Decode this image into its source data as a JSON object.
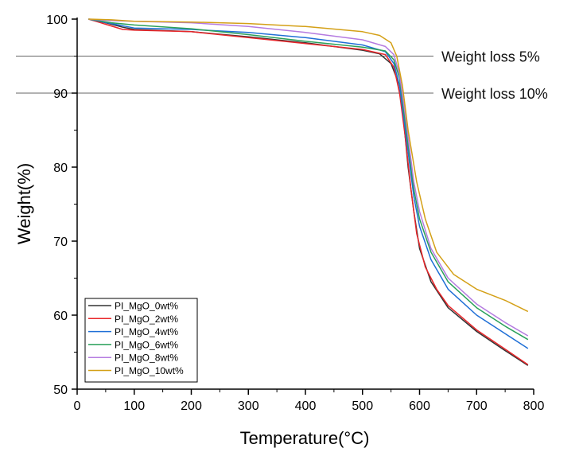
{
  "chart_data": {
    "type": "line",
    "title": "",
    "xlabel": "Temperature(°C)",
    "ylabel": "Weight(%)",
    "xlim": [
      0,
      800
    ],
    "ylim": [
      50,
      100
    ],
    "xticks": [
      "0",
      "100",
      "200",
      "300",
      "400",
      "500",
      "600",
      "700",
      "800"
    ],
    "yticks": [
      "50",
      "60",
      "70",
      "80",
      "90",
      "100"
    ],
    "grid": false,
    "legend_position": "bottom-left",
    "reference_lines": [
      {
        "y": 95,
        "label": "Weight loss 5%"
      },
      {
        "y": 90,
        "label": "Weight loss 10%"
      }
    ],
    "series": [
      {
        "name": "PI_MgO_0wt%",
        "color": "#333333",
        "points": [
          [
            20,
            100
          ],
          [
            50,
            99.5
          ],
          [
            80,
            98.9
          ],
          [
            100,
            98.6
          ],
          [
            200,
            98.3
          ],
          [
            300,
            97.6
          ],
          [
            400,
            96.8
          ],
          [
            500,
            95.8
          ],
          [
            530,
            95.3
          ],
          [
            550,
            94
          ],
          [
            560,
            92
          ],
          [
            570,
            88
          ],
          [
            580,
            80
          ],
          [
            590,
            74
          ],
          [
            600,
            69
          ],
          [
            620,
            64.5
          ],
          [
            650,
            61
          ],
          [
            700,
            57.8
          ],
          [
            750,
            55.2
          ],
          [
            790,
            53.2
          ]
        ]
      },
      {
        "name": "PI_MgO_2wt%",
        "color": "#e8262a",
        "points": [
          [
            20,
            100
          ],
          [
            50,
            99.3
          ],
          [
            80,
            98.6
          ],
          [
            100,
            98.5
          ],
          [
            200,
            98.3
          ],
          [
            300,
            97.5
          ],
          [
            400,
            96.7
          ],
          [
            500,
            95.9
          ],
          [
            540,
            95.2
          ],
          [
            555,
            93.5
          ],
          [
            565,
            90
          ],
          [
            575,
            84
          ],
          [
            585,
            77
          ],
          [
            595,
            71
          ],
          [
            610,
            66.5
          ],
          [
            630,
            63.5
          ],
          [
            650,
            61.3
          ],
          [
            700,
            58
          ],
          [
            750,
            55.4
          ],
          [
            790,
            53.3
          ]
        ]
      },
      {
        "name": "PI_MgO_4wt%",
        "color": "#1f6fd6",
        "points": [
          [
            20,
            100
          ],
          [
            60,
            99.4
          ],
          [
            100,
            98.8
          ],
          [
            200,
            98.6
          ],
          [
            300,
            98.2
          ],
          [
            400,
            97.5
          ],
          [
            500,
            96.5
          ],
          [
            540,
            95.6
          ],
          [
            555,
            94
          ],
          [
            565,
            91
          ],
          [
            575,
            85
          ],
          [
            590,
            76
          ],
          [
            600,
            72
          ],
          [
            620,
            67.5
          ],
          [
            650,
            63.5
          ],
          [
            700,
            60
          ],
          [
            750,
            57.5
          ],
          [
            790,
            55.5
          ]
        ]
      },
      {
        "name": "PI_MgO_6wt%",
        "color": "#2aa05a",
        "points": [
          [
            20,
            100
          ],
          [
            60,
            99.5
          ],
          [
            100,
            99.2
          ],
          [
            200,
            98.7
          ],
          [
            300,
            97.9
          ],
          [
            400,
            97.0
          ],
          [
            500,
            96.2
          ],
          [
            540,
            95.7
          ],
          [
            555,
            94.5
          ],
          [
            565,
            92
          ],
          [
            575,
            86
          ],
          [
            590,
            77
          ],
          [
            600,
            73
          ],
          [
            620,
            68.5
          ],
          [
            650,
            64.5
          ],
          [
            700,
            61
          ],
          [
            750,
            58.5
          ],
          [
            790,
            56.7
          ]
        ]
      },
      {
        "name": "PI_MgO_8wt%",
        "color": "#b57be0",
        "points": [
          [
            20,
            100
          ],
          [
            60,
            99.8
          ],
          [
            100,
            99.7
          ],
          [
            200,
            99.5
          ],
          [
            300,
            99.0
          ],
          [
            400,
            98.2
          ],
          [
            500,
            97.2
          ],
          [
            540,
            96.3
          ],
          [
            555,
            95.2
          ],
          [
            565,
            92.5
          ],
          [
            575,
            87
          ],
          [
            590,
            78
          ],
          [
            600,
            74
          ],
          [
            620,
            69
          ],
          [
            650,
            65
          ],
          [
            700,
            61.5
          ],
          [
            750,
            59
          ],
          [
            790,
            57.2
          ]
        ]
      },
      {
        "name": "PI_MgO_10wt%",
        "color": "#d4a017",
        "points": [
          [
            20,
            100
          ],
          [
            60,
            99.9
          ],
          [
            100,
            99.7
          ],
          [
            200,
            99.6
          ],
          [
            300,
            99.4
          ],
          [
            400,
            99.0
          ],
          [
            500,
            98.3
          ],
          [
            530,
            97.8
          ],
          [
            550,
            96.8
          ],
          [
            560,
            95
          ],
          [
            570,
            91
          ],
          [
            580,
            85
          ],
          [
            595,
            78
          ],
          [
            610,
            73
          ],
          [
            630,
            68.5
          ],
          [
            660,
            65.5
          ],
          [
            700,
            63.5
          ],
          [
            750,
            62
          ],
          [
            790,
            60.5
          ]
        ]
      }
    ]
  }
}
